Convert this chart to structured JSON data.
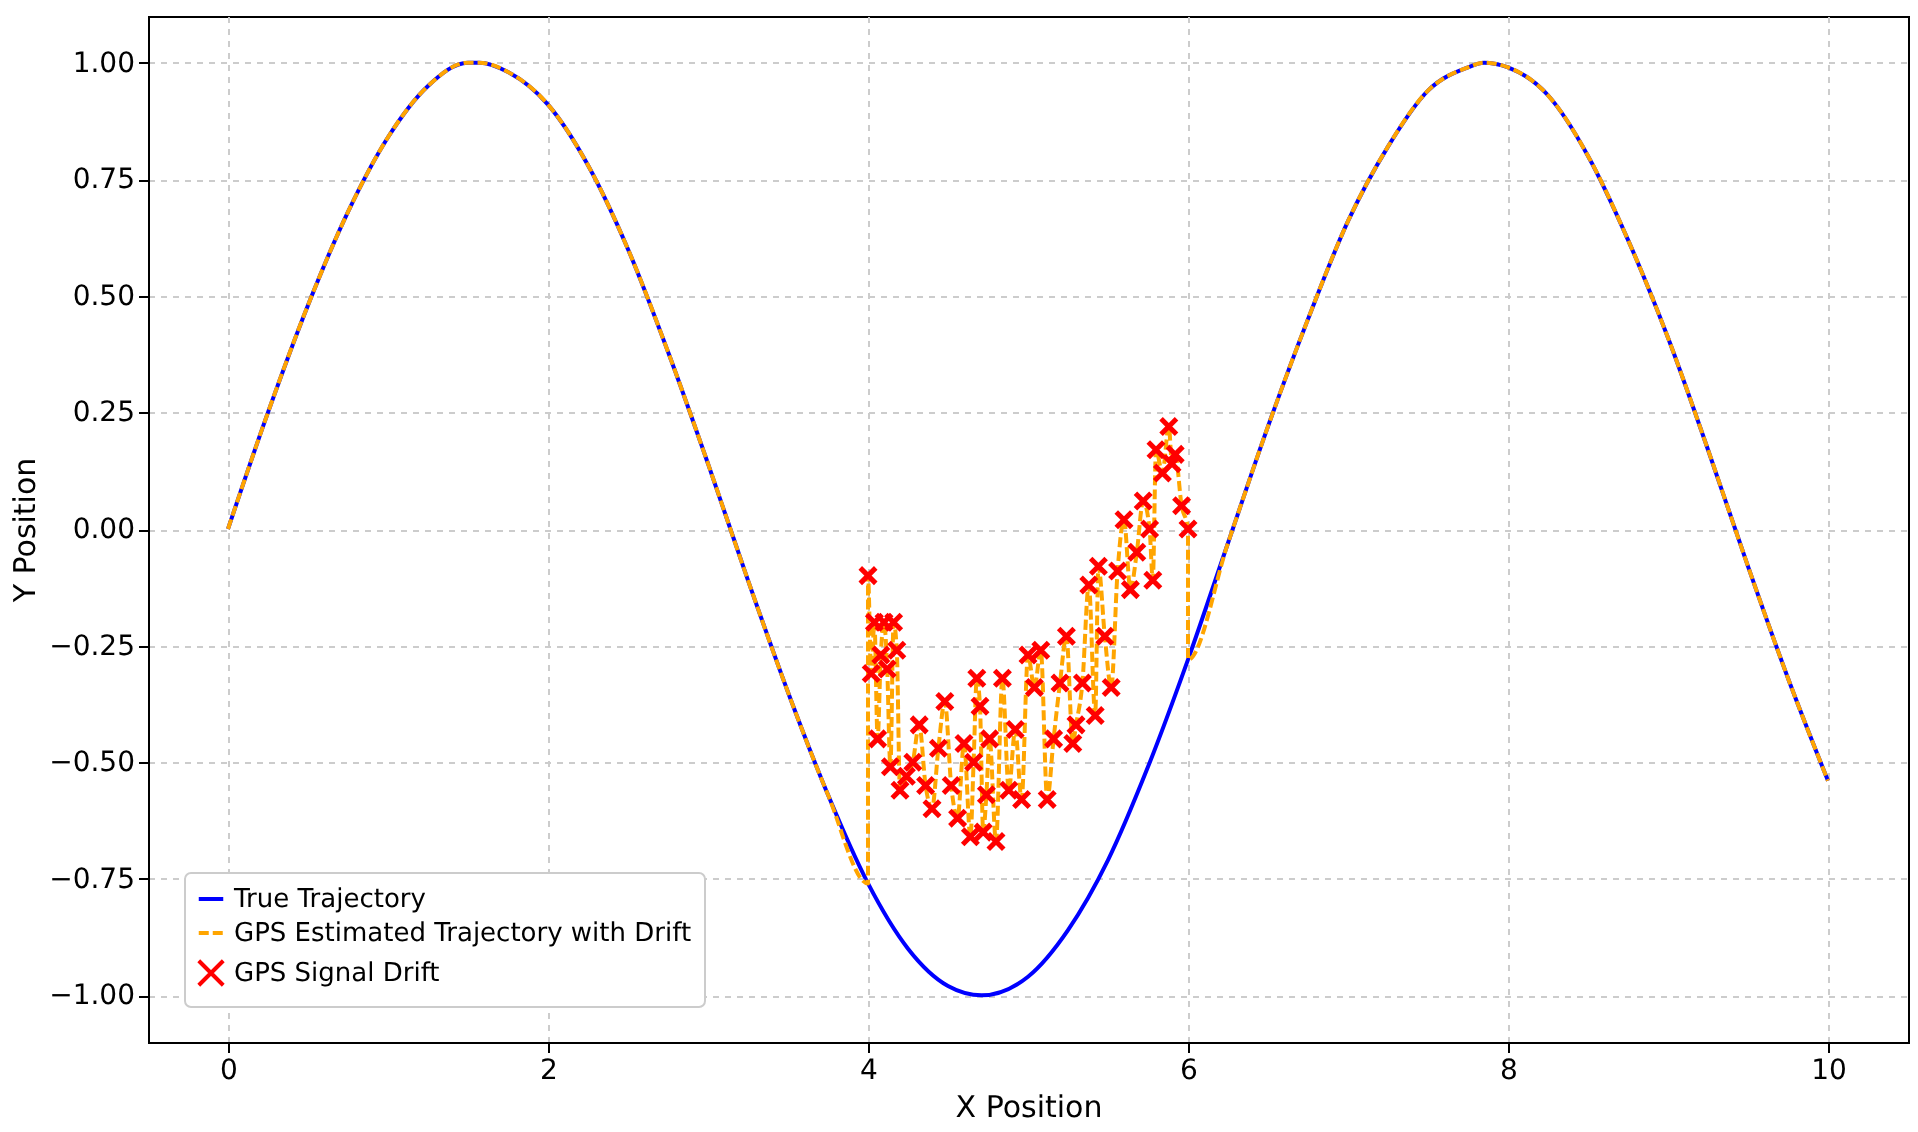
{
  "chart_data": {
    "type": "line",
    "xlabel": "X Position",
    "ylabel": "Y Position",
    "xlim": [
      -0.5,
      10.5
    ],
    "ylim": [
      -1.1,
      1.1
    ],
    "xticks": [
      0,
      2,
      4,
      6,
      8,
      10
    ],
    "yticks": [
      {
        "value": -1,
        "label": "−1.00"
      },
      {
        "value": -0.75,
        "label": "−0.75"
      },
      {
        "value": -0.5,
        "label": "−0.50"
      },
      {
        "value": -0.25,
        "label": "−0.25"
      },
      {
        "value": 0,
        "label": "0.00"
      },
      {
        "value": 0.25,
        "label": "0.25"
      },
      {
        "value": 0.5,
        "label": "0.50"
      },
      {
        "value": 0.75,
        "label": "0.75"
      },
      {
        "value": 1,
        "label": "1.00"
      }
    ],
    "grid": true,
    "legend": "bottom left",
    "series": [
      {
        "name": "True Trajectory",
        "color": "#0000ff",
        "line_style": "solid",
        "x": [
          0,
          0.25,
          0.5,
          0.75,
          1,
          1.25,
          1.5,
          1.57,
          1.75,
          2,
          2.25,
          2.5,
          2.75,
          3,
          3.25,
          3.5,
          3.75,
          4,
          4.25,
          4.5,
          4.71,
          5,
          5.25,
          5.5,
          5.75,
          6,
          6.25,
          6.5,
          6.75,
          7,
          7.25,
          7.5,
          7.75,
          7.85,
          8,
          8.25,
          8.5,
          8.75,
          9,
          9.25,
          9.5,
          9.75,
          10
        ],
        "values": [
          0,
          0.25,
          0.48,
          0.68,
          0.84,
          0.95,
          1.0,
          1.0,
          0.98,
          0.91,
          0.78,
          0.6,
          0.38,
          0.14,
          -0.11,
          -0.35,
          -0.57,
          -0.76,
          -0.9,
          -0.98,
          -1.0,
          -0.96,
          -0.86,
          -0.71,
          -0.51,
          -0.28,
          -0.03,
          0.22,
          0.45,
          0.66,
          0.82,
          0.94,
          0.99,
          1.0,
          0.99,
          0.93,
          0.8,
          0.62,
          0.41,
          0.17,
          -0.08,
          -0.32,
          -0.54
        ]
      },
      {
        "name": "GPS Estimated Trajectory with Drift",
        "color": "#ffa500",
        "line_style": "dashed",
        "x": [
          0,
          0.25,
          0.5,
          0.75,
          1,
          1.25,
          1.5,
          1.57,
          1.75,
          2,
          2.25,
          2.5,
          2.75,
          3,
          3.25,
          3.5,
          3.75,
          4,
          4,
          4.02,
          4.04,
          4.06,
          4.08,
          4.1,
          4.12,
          4.14,
          4.16,
          4.18,
          4.2,
          4.24,
          4.28,
          4.32,
          4.36,
          4.4,
          4.44,
          4.48,
          4.52,
          4.56,
          4.6,
          4.64,
          4.66,
          4.68,
          4.7,
          4.72,
          4.74,
          4.76,
          4.8,
          4.84,
          4.88,
          4.92,
          4.96,
          5.0,
          5.04,
          5.08,
          5.12,
          5.16,
          5.2,
          5.24,
          5.28,
          5.3,
          5.34,
          5.38,
          5.42,
          5.44,
          5.48,
          5.52,
          5.56,
          5.6,
          5.64,
          5.68,
          5.72,
          5.76,
          5.78,
          5.8,
          5.84,
          5.88,
          5.9,
          5.92,
          5.96,
          6.0,
          6.0,
          6.25,
          6.5,
          6.75,
          7,
          7.25,
          7.5,
          7.75,
          7.85,
          8,
          8.25,
          8.5,
          8.75,
          9,
          9.25,
          9.5,
          9.75,
          10
        ],
        "values": [
          0,
          0.25,
          0.48,
          0.68,
          0.84,
          0.95,
          1.0,
          1.0,
          0.98,
          0.91,
          0.78,
          0.6,
          0.38,
          0.14,
          -0.11,
          -0.35,
          -0.57,
          -0.76,
          -0.1,
          -0.31,
          -0.2,
          -0.45,
          -0.27,
          -0.2,
          -0.3,
          -0.51,
          -0.2,
          -0.26,
          -0.56,
          -0.53,
          -0.5,
          -0.42,
          -0.55,
          -0.6,
          -0.47,
          -0.37,
          -0.55,
          -0.62,
          -0.46,
          -0.66,
          -0.5,
          -0.32,
          -0.38,
          -0.65,
          -0.57,
          -0.45,
          -0.67,
          -0.32,
          -0.56,
          -0.43,
          -0.58,
          -0.27,
          -0.34,
          -0.26,
          -0.58,
          -0.45,
          -0.33,
          -0.23,
          -0.46,
          -0.42,
          -0.33,
          -0.12,
          -0.4,
          -0.08,
          -0.23,
          -0.34,
          -0.09,
          0.02,
          -0.13,
          -0.05,
          0.06,
          0.0,
          -0.11,
          0.17,
          0.12,
          0.22,
          0.14,
          0.16,
          0.05,
          0.0,
          -0.28,
          -0.03,
          0.22,
          0.45,
          0.66,
          0.82,
          0.94,
          0.99,
          1.0,
          0.99,
          0.93,
          0.8,
          0.62,
          0.41,
          0.17,
          -0.08,
          -0.32,
          -0.54
        ]
      },
      {
        "name": "GPS Signal Drift",
        "type": "scatter",
        "color": "#ff0000",
        "marker": "cross",
        "x": [
          4,
          4.02,
          4.04,
          4.06,
          4.08,
          4.1,
          4.12,
          4.14,
          4.16,
          4.18,
          4.2,
          4.24,
          4.28,
          4.32,
          4.36,
          4.4,
          4.44,
          4.48,
          4.52,
          4.56,
          4.6,
          4.64,
          4.66,
          4.68,
          4.7,
          4.72,
          4.74,
          4.76,
          4.8,
          4.84,
          4.88,
          4.92,
          4.96,
          5.0,
          5.04,
          5.08,
          5.12,
          5.16,
          5.2,
          5.24,
          5.28,
          5.3,
          5.34,
          5.38,
          5.42,
          5.44,
          5.48,
          5.52,
          5.56,
          5.6,
          5.64,
          5.68,
          5.72,
          5.76,
          5.78,
          5.8,
          5.84,
          5.88,
          5.9,
          5.92,
          5.96,
          6.0
        ],
        "values": [
          -0.1,
          -0.31,
          -0.2,
          -0.45,
          -0.27,
          -0.2,
          -0.3,
          -0.51,
          -0.2,
          -0.26,
          -0.56,
          -0.53,
          -0.5,
          -0.42,
          -0.55,
          -0.6,
          -0.47,
          -0.37,
          -0.55,
          -0.62,
          -0.46,
          -0.66,
          -0.5,
          -0.32,
          -0.38,
          -0.65,
          -0.57,
          -0.45,
          -0.67,
          -0.32,
          -0.56,
          -0.43,
          -0.58,
          -0.27,
          -0.34,
          -0.26,
          -0.58,
          -0.45,
          -0.33,
          -0.23,
          -0.46,
          -0.42,
          -0.33,
          -0.12,
          -0.4,
          -0.08,
          -0.23,
          -0.34,
          -0.09,
          0.02,
          -0.13,
          -0.05,
          0.06,
          0.0,
          -0.11,
          0.17,
          0.12,
          0.22,
          0.14,
          0.16,
          0.05,
          0.0
        ]
      }
    ]
  }
}
